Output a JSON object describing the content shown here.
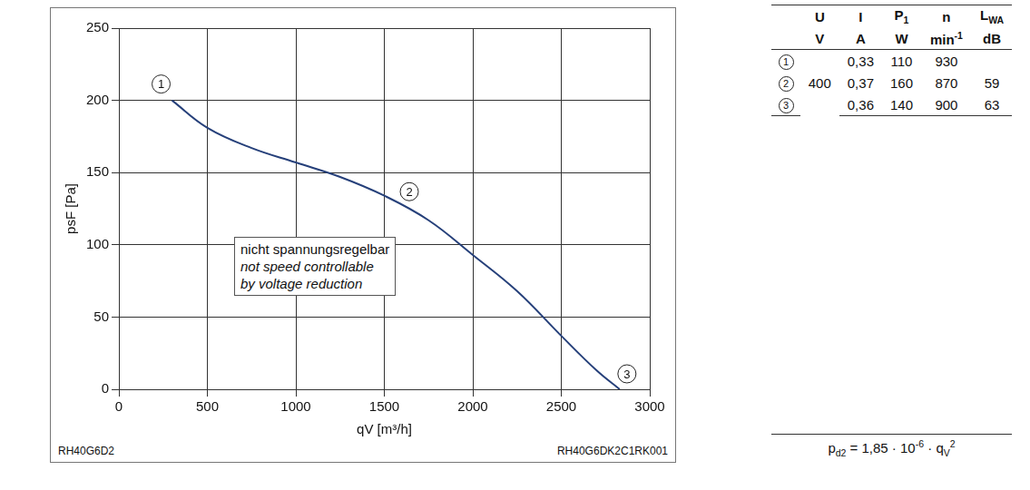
{
  "chart_data": {
    "type": "line",
    "x_label": "qV [m³/h]",
    "y_label": "psF [Pa]",
    "x": [
      300,
      500,
      750,
      1000,
      1250,
      1500,
      1750,
      2000,
      2250,
      2500,
      2700,
      2830
    ],
    "values": [
      200,
      181,
      167,
      157,
      147,
      134,
      117,
      93,
      68,
      37,
      13,
      0
    ],
    "color": "#26407a",
    "xlim": [
      0,
      3000
    ],
    "xticks": [
      0,
      500,
      1000,
      1500,
      2000,
      2500,
      3000
    ],
    "ylim": [
      0,
      250
    ],
    "yticks": [
      0,
      50,
      100,
      150,
      200,
      250
    ],
    "grid": true,
    "operating_points": [
      {
        "label": "1",
        "x": 300,
        "y": 200
      },
      {
        "label": "2",
        "x": 1600,
        "y": 128
      },
      {
        "label": "3",
        "x": 2830,
        "y": 0
      }
    ],
    "annotation": [
      "nicht spannungsregelbar",
      "not speed controllable",
      "by voltage reduction"
    ],
    "code_left": "RH40G6D2",
    "code_right": "RH40G6DK2C1RK001"
  },
  "table": {
    "header": [
      {
        "text": "U"
      },
      {
        "text": "I"
      },
      {
        "text": "P",
        "sub": "1"
      },
      {
        "text": "n"
      },
      {
        "text": "L",
        "sub": "WA"
      }
    ],
    "units": [
      {
        "text": "V"
      },
      {
        "text": "A"
      },
      {
        "text": "W"
      },
      {
        "text": "min",
        "sup": "-1"
      },
      {
        "text": "dB"
      }
    ],
    "voltage": "400",
    "rows": [
      {
        "point": "1",
        "cells": [
          "0,33",
          "110",
          "930",
          null
        ]
      },
      {
        "point": "2",
        "cells": [
          "0,37",
          "160",
          "870",
          "59"
        ]
      },
      {
        "point": "3",
        "cells": [
          "0,36",
          "140",
          "900",
          "63"
        ]
      }
    ]
  },
  "formula": [
    {
      "text": "p"
    },
    {
      "sub": "d2"
    },
    {
      "text": " = 1,85 · 10"
    },
    {
      "sup": "-6"
    },
    {
      "text": " · q"
    },
    {
      "sub": "V"
    },
    {
      "sup": "2"
    }
  ]
}
